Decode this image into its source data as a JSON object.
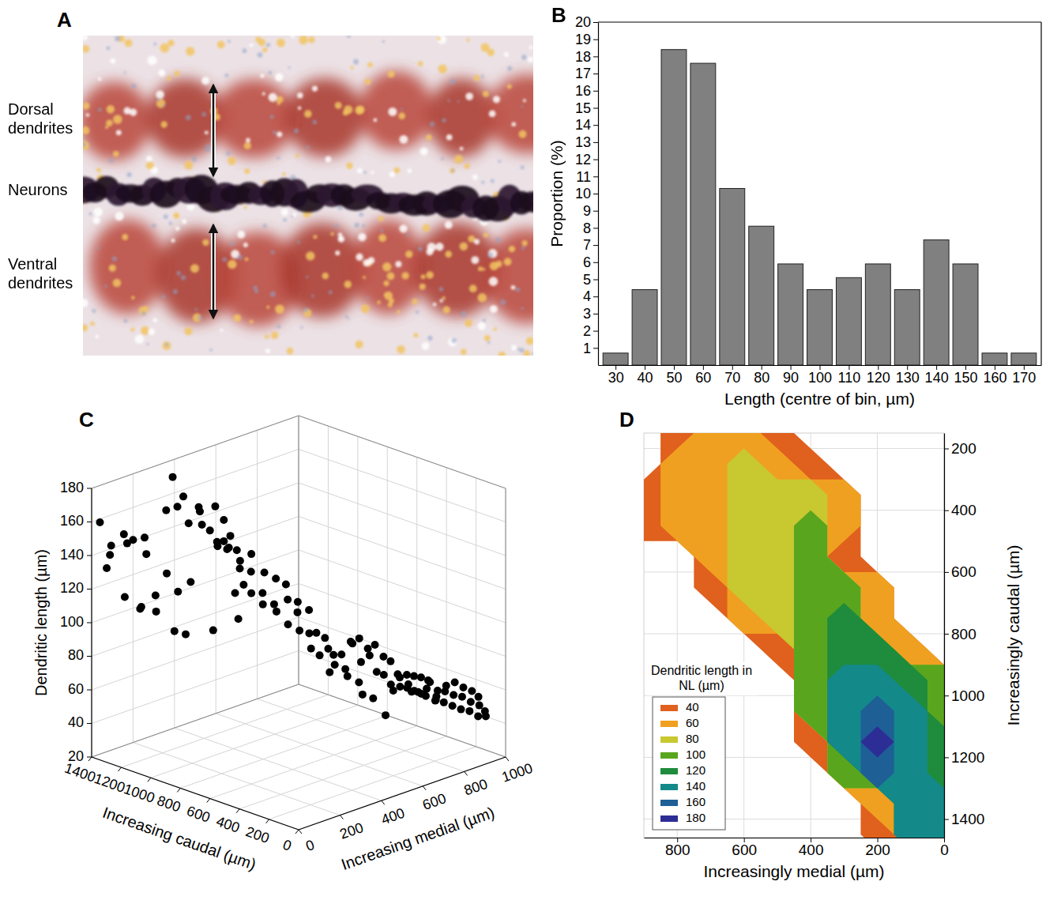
{
  "chart_data": [
    {
      "panel": "A",
      "type": "image",
      "labels": [
        "Dorsal dendrites",
        "Neurons",
        "Ventral dendrites"
      ]
    },
    {
      "panel": "B",
      "type": "histogram",
      "bins": [
        25,
        35,
        45,
        55,
        65,
        75,
        85,
        95,
        105,
        115,
        125,
        135,
        145,
        155,
        165,
        175
      ],
      "values": [
        0.7,
        4.4,
        18.4,
        17.6,
        10.3,
        8.1,
        5.9,
        4.4,
        5.1,
        5.9,
        4.4,
        7.3,
        5.9,
        0.7,
        0.7
      ],
      "color": "#808080",
      "xlim": [
        24,
        176
      ],
      "xticks": [
        30,
        40,
        50,
        60,
        70,
        80,
        90,
        100,
        110,
        120,
        130,
        140,
        150,
        160,
        170
      ],
      "ylim": [
        0,
        20
      ],
      "yticks": [
        1,
        2,
        3,
        4,
        5,
        6,
        7,
        8,
        9,
        10,
        11,
        12,
        13,
        14,
        15,
        16,
        17,
        18,
        19,
        20
      ],
      "x_label": "Length (centre of bin, µm)",
      "y_label": "Proportion (%)"
    },
    {
      "panel": "C",
      "type": "scatter3d",
      "color": "#000000",
      "grid": true,
      "x": [
        1400,
        1380,
        1360,
        1350,
        1340,
        1330,
        1300,
        1280,
        1310,
        1260,
        1240,
        1220,
        1200,
        1190,
        1180,
        1160,
        1150,
        1120,
        1100,
        1260,
        1240,
        1300,
        1270,
        1220,
        1200,
        1180,
        1160,
        1140,
        1130,
        1110,
        1180,
        1150,
        1120,
        1100,
        1090,
        1060,
        1040,
        1020,
        1000,
        980,
        960,
        950,
        930,
        910,
        900,
        880,
        870,
        850,
        830,
        820,
        800,
        790,
        770,
        750,
        740,
        1080,
        1010,
        990,
        960,
        940,
        720,
        700,
        690,
        670,
        660,
        640,
        620,
        610,
        600,
        580,
        570,
        560,
        540,
        530,
        520,
        500,
        490,
        480,
        470,
        460,
        700,
        650,
        600,
        560,
        520,
        450,
        440,
        430,
        420,
        410,
        400,
        390,
        380,
        370,
        360,
        350,
        340,
        330,
        320,
        310,
        300,
        290,
        280,
        270,
        260,
        250,
        240,
        230,
        220,
        210,
        200,
        190,
        180,
        170,
        160,
        150,
        140,
        130,
        120,
        420,
        380,
        340,
        300,
        260,
        220
      ],
      "y": [
        40,
        80,
        60,
        120,
        30,
        150,
        100,
        170,
        200,
        60,
        120,
        180,
        220,
        90,
        260,
        140,
        300,
        200,
        240,
        260,
        300,
        320,
        350,
        340,
        380,
        360,
        400,
        420,
        340,
        380,
        440,
        460,
        470,
        440,
        480,
        420,
        460,
        500,
        430,
        470,
        520,
        450,
        490,
        540,
        470,
        510,
        560,
        500,
        540,
        580,
        520,
        560,
        600,
        540,
        580,
        380,
        360,
        400,
        420,
        380,
        600,
        560,
        620,
        580,
        640,
        600,
        650,
        610,
        680,
        640,
        700,
        660,
        720,
        680,
        740,
        700,
        760,
        720,
        780,
        740,
        650,
        700,
        720,
        760,
        680,
        800,
        760,
        830,
        790,
        850,
        810,
        870,
        830,
        890,
        850,
        780,
        820,
        870,
        900,
        840,
        880,
        920,
        860,
        900,
        940,
        880,
        920,
        960,
        900,
        940,
        980,
        920,
        960,
        990,
        940,
        980,
        1000,
        960,
        990,
        720,
        760,
        700,
        760,
        800,
        820
      ],
      "z": [
        158,
        143,
        139,
        149,
        133,
        145,
        146,
        147,
        135,
        117,
        108,
        114,
        126,
        112,
        114,
        108,
        119,
        95,
        92,
        160,
        161,
        176,
        164,
        150,
        156,
        160,
        145,
        138,
        152,
        88,
        157,
        149,
        140,
        134,
        132,
        137,
        128,
        131,
        126,
        123,
        121,
        112,
        111,
        118,
        106,
        105,
        115,
        102,
        108,
        99,
        95,
        107,
        101,
        92,
        89,
        139,
        145,
        113,
        118,
        100,
        89,
        82,
        86,
        78,
        76,
        82,
        77,
        73,
        84,
        70,
        86,
        85,
        80,
        74,
        82,
        78,
        75,
        68,
        72,
        66,
        64,
        61,
        58,
        48,
        55,
        64,
        60,
        63,
        58,
        62,
        57,
        61,
        55,
        59,
        53,
        62,
        56,
        60,
        54,
        58,
        52,
        57,
        51,
        55,
        59,
        50,
        53,
        56,
        48,
        52,
        54,
        46,
        49,
        51,
        45,
        47,
        43,
        42,
        41,
        44,
        66,
        62,
        60,
        57,
        55
      ],
      "xlim": [
        0,
        1400
      ],
      "xticks": [
        0,
        200,
        400,
        600,
        800,
        1000,
        1200,
        1400
      ],
      "ylim": [
        0,
        1000
      ],
      "yticks": [
        0,
        200,
        400,
        600,
        800,
        1000
      ],
      "zlim": [
        20,
        180
      ],
      "zticks": [
        20,
        40,
        60,
        80,
        100,
        120,
        140,
        160,
        180
      ],
      "x_label": "Increasing caudal (µm)",
      "y_label": "Increasing medial (µm)",
      "z_label": "Dendritic length (µm)"
    },
    {
      "panel": "D",
      "type": "contour",
      "grid": true,
      "legend": "lower left",
      "legend_title": "Dendritic length in NL (µm)",
      "x": [
        0,
        100,
        200,
        300,
        400,
        500,
        600,
        700,
        800,
        900
      ],
      "y": [
        150,
        250,
        350,
        450,
        550,
        650,
        750,
        850,
        950,
        1050,
        1150,
        1250,
        1350,
        1450
      ],
      "values": [
        [
          null,
          null,
          null,
          null,
          null,
          45,
          78,
          70,
          55,
          null
        ],
        [
          null,
          null,
          null,
          null,
          50,
          75,
          82,
          78,
          62,
          null
        ],
        [
          null,
          null,
          null,
          60,
          90,
          82,
          82,
          75,
          62,
          55
        ],
        [
          null,
          null,
          null,
          70,
          100,
          85,
          80,
          70,
          62,
          55
        ],
        [
          null,
          null,
          null,
          55,
          100,
          88,
          82,
          65,
          null,
          null
        ],
        [
          null,
          null,
          60,
          115,
          105,
          88,
          80,
          50,
          null,
          null
        ],
        [
          null,
          null,
          60,
          120,
          105,
          85,
          70,
          null,
          null,
          null
        ],
        [
          null,
          65,
          125,
          125,
          100,
          55,
          null,
          null,
          null,
          null
        ],
        [
          100,
          125,
          150,
          140,
          110,
          null,
          null,
          null,
          null,
          null
        ],
        [
          115,
          145,
          160,
          150,
          100,
          null,
          null,
          null,
          null,
          null
        ],
        [
          120,
          150,
          180,
          155,
          50,
          null,
          null,
          null,
          null,
          null
        ],
        [
          120,
          145,
          165,
          110,
          null,
          null,
          null,
          null,
          null,
          null
        ],
        [
          140,
          155,
          60,
          null,
          null,
          null,
          null,
          null,
          null,
          null
        ],
        [
          140,
          150,
          55,
          null,
          null,
          null,
          null,
          null,
          null,
          null
        ]
      ],
      "levels": [
        40,
        60,
        80,
        100,
        120,
        140,
        160,
        180
      ],
      "colors": [
        "#e0601e",
        "#f0a020",
        "#c8c830",
        "#5aa51e",
        "#1e8c3c",
        "#14898a",
        "#1e5f96",
        "#2d2d96"
      ],
      "xlim": [
        900,
        0
      ],
      "xticks": [
        800,
        600,
        400,
        200,
        0
      ],
      "ylim": [
        150,
        1460
      ],
      "yticks": [
        200,
        400,
        600,
        800,
        1000,
        1200,
        1400
      ],
      "x_label": "Increasingly medial (µm)",
      "y_label": "Increasingly caudal (µm)"
    }
  ]
}
